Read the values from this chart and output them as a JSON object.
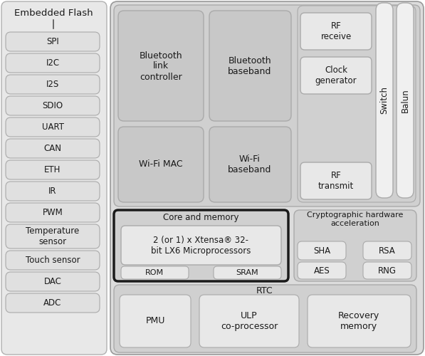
{
  "fig_w": 5.97,
  "fig_h": 5.0,
  "dpi": 100,
  "bg": "#ffffff",
  "gray_bg": "#d4d4d4",
  "box_gray": "#d4d4d4",
  "box_white": "#f0f0f0",
  "edge_gray": "#aaaaaa",
  "edge_dark": "#1a1a1a",
  "text_dark": "#1a1a1a",
  "left_labels": [
    "SPI",
    "I2C",
    "I2S",
    "SDIO",
    "UART",
    "CAN",
    "ETH",
    "IR",
    "PWM",
    "Temperature\nsensor",
    "Touch sensor",
    "DAC",
    "ADC"
  ]
}
